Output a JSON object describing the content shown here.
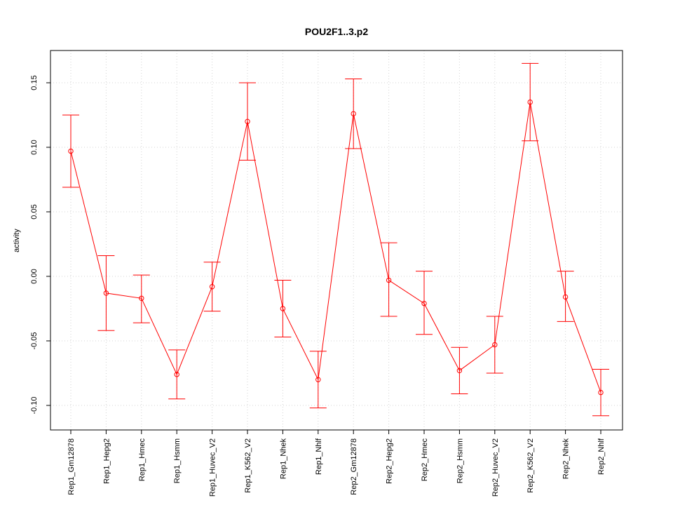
{
  "chart_data": {
    "type": "line",
    "title": "POU2F1..3.p2",
    "xlabel": "",
    "ylabel": "activity",
    "ylim": [
      -0.12,
      0.175
    ],
    "yticks": [
      -0.1,
      -0.05,
      0.0,
      0.05,
      0.1,
      0.15
    ],
    "ytick_labels": [
      "-0.10",
      "-0.05",
      "0.00",
      "0.05",
      "0.10",
      "0.15"
    ],
    "grid": true,
    "categories": [
      "Rep1_Gm12878",
      "Rep1_Hepg2",
      "Rep1_Hmec",
      "Rep1_Hsmm",
      "Rep1_Huvec_V2",
      "Rep1_K562_V2",
      "Rep1_Nhek",
      "Rep1_Nhlf",
      "Rep2_Gm12878",
      "Rep2_Hepg2",
      "Rep2_Hmec",
      "Rep2_Hsmm",
      "Rep2_Huvec_V2",
      "Rep2_K562_V2",
      "Rep2_Nhek",
      "Rep2_Nhlf"
    ],
    "series": [
      {
        "name": "activity",
        "color": "#ff0000",
        "values": [
          0.097,
          -0.013,
          -0.017,
          -0.076,
          -0.008,
          0.12,
          -0.025,
          -0.08,
          0.126,
          -0.003,
          -0.021,
          -0.073,
          -0.053,
          0.135,
          -0.016,
          -0.09
        ],
        "upper": [
          0.125,
          0.016,
          0.001,
          -0.057,
          0.011,
          0.15,
          -0.003,
          -0.058,
          0.153,
          0.026,
          0.004,
          -0.055,
          -0.031,
          0.165,
          0.004,
          -0.072
        ],
        "lower": [
          0.069,
          -0.042,
          -0.036,
          -0.095,
          -0.027,
          0.09,
          -0.047,
          -0.102,
          0.099,
          -0.031,
          -0.045,
          -0.091,
          -0.075,
          0.105,
          -0.035,
          -0.108
        ]
      }
    ]
  }
}
